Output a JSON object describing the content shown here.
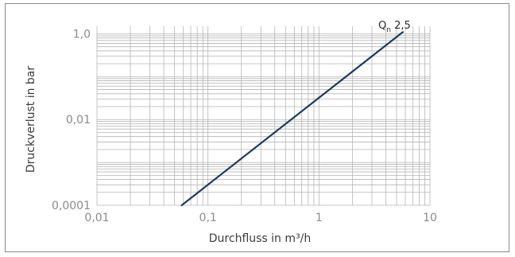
{
  "chart_data": {
    "type": "line",
    "title": "",
    "xlabel": "Durchfluss in m³/h",
    "ylabel": "Druckverlust in bar",
    "x_scale": "log",
    "y_scale": "log",
    "xlim": [
      0.01,
      10
    ],
    "ylim": [
      0.0001,
      1.5
    ],
    "x_ticks": [
      {
        "value": 0.01,
        "label": "0,01"
      },
      {
        "value": 0.1,
        "label": "0,1"
      },
      {
        "value": 1,
        "label": "1"
      },
      {
        "value": 10,
        "label": "10"
      }
    ],
    "y_ticks": [
      {
        "value": 0.0001,
        "label": "0,0001"
      },
      {
        "value": 0.01,
        "label": "0,01"
      },
      {
        "value": 1,
        "label": "1,0"
      }
    ],
    "grid": true,
    "series": [
      {
        "label_main": "Q",
        "label_sub": "n",
        "label_rest": " 2,5",
        "color": "#1b3a5c",
        "points": [
          {
            "x": 0.058,
            "y": 0.0001
          },
          {
            "x": 5.7,
            "y": 1.1
          }
        ]
      }
    ]
  },
  "colors": {
    "grid": "#b5b5b5",
    "frame": "#8a8a8a",
    "line": "#1b3a5c"
  }
}
